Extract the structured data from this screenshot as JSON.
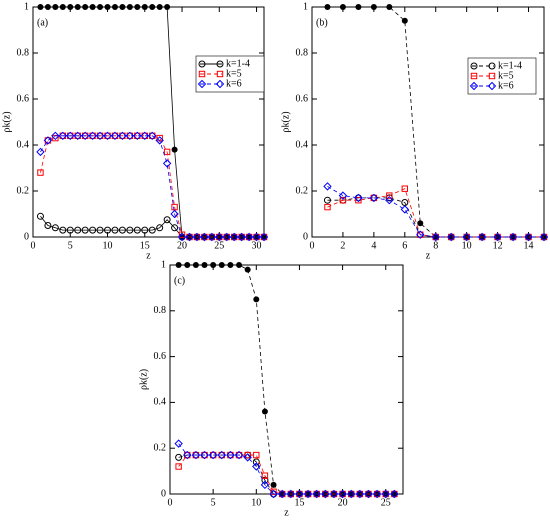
{
  "chart_data": [
    {
      "type": "line",
      "panel_label": "(a)",
      "xlabel": "z",
      "ylabel": "ρk(z)",
      "x": [
        1,
        2,
        3,
        4,
        5,
        6,
        7,
        8,
        9,
        10,
        11,
        12,
        13,
        14,
        15,
        16,
        17,
        18,
        19,
        20,
        21,
        22,
        23,
        24,
        25,
        26,
        27,
        28,
        29,
        30,
        31
      ],
      "xlim": [
        0,
        31
      ],
      "xticks": [
        0,
        5,
        10,
        15,
        20,
        25,
        30
      ],
      "ylim": [
        0,
        1
      ],
      "yticks": [
        0,
        0.2,
        0.4,
        0.6,
        0.8,
        1
      ],
      "series": [
        {
          "color": "#000000",
          "marker": "filled-circle",
          "dashed": false,
          "values": [
            1,
            1,
            1,
            1,
            1,
            1,
            1,
            1,
            1,
            1,
            1,
            1,
            1,
            1,
            1,
            1,
            1,
            1,
            0.38,
            0,
            0,
            0,
            0,
            0,
            0,
            0,
            0,
            0,
            0,
            0,
            0
          ]
        },
        {
          "name": "k=1-4",
          "color": "#000000",
          "marker": "circle",
          "dashed": false,
          "values": [
            0.09,
            0.05,
            0.04,
            0.03,
            0.03,
            0.03,
            0.03,
            0.03,
            0.03,
            0.03,
            0.03,
            0.03,
            0.03,
            0.03,
            0.03,
            0.03,
            0.04,
            0.075,
            0.04,
            0,
            0,
            0,
            0,
            0,
            0,
            0,
            0,
            0,
            0,
            0,
            0
          ]
        },
        {
          "name": "k=5",
          "color": "#ff0000",
          "marker": "square",
          "dashed": true,
          "values": [
            0.28,
            0.42,
            0.43,
            0.44,
            0.44,
            0.44,
            0.44,
            0.44,
            0.44,
            0.44,
            0.44,
            0.44,
            0.44,
            0.44,
            0.44,
            0.44,
            0.43,
            0.37,
            0.13,
            0.01,
            0,
            0,
            0,
            0,
            0,
            0,
            0,
            0,
            0,
            0,
            0
          ]
        },
        {
          "name": "k=6",
          "color": "#0000ff",
          "marker": "diamond",
          "dashed": true,
          "values": [
            0.37,
            0.42,
            0.44,
            0.44,
            0.44,
            0.44,
            0.44,
            0.44,
            0.44,
            0.44,
            0.44,
            0.44,
            0.44,
            0.44,
            0.44,
            0.44,
            0.42,
            0.32,
            0.1,
            0,
            0,
            0,
            0,
            0,
            0,
            0,
            0,
            0,
            0,
            0,
            0
          ]
        }
      ]
    },
    {
      "type": "line",
      "panel_label": "(b)",
      "xlabel": "z",
      "ylabel": "ρk(z)",
      "x": [
        1,
        2,
        3,
        4,
        5,
        6,
        7,
        8,
        9,
        10,
        11,
        12,
        13,
        14,
        15
      ],
      "xlim": [
        0,
        15
      ],
      "xticks": [
        0,
        2,
        4,
        6,
        8,
        10,
        12,
        14
      ],
      "ylim": [
        0,
        1
      ],
      "yticks": [
        0,
        0.2,
        0.4,
        0.6,
        0.8,
        1
      ],
      "series": [
        {
          "color": "#000000",
          "marker": "filled-circle",
          "dashed": true,
          "values": [
            1,
            1,
            1,
            1,
            1,
            0.94,
            0.06,
            0,
            0,
            0,
            0,
            0,
            0,
            0,
            0
          ]
        },
        {
          "name": "k=1-4",
          "color": "#000000",
          "marker": "circle",
          "dashed": true,
          "values": [
            0.16,
            0.16,
            0.17,
            0.17,
            0.17,
            0.15,
            0.01,
            0,
            0,
            0,
            0,
            0,
            0,
            0,
            0
          ]
        },
        {
          "name": "k=5",
          "color": "#ff0000",
          "marker": "square",
          "dashed": true,
          "values": [
            0.13,
            0.16,
            0.16,
            0.17,
            0.18,
            0.21,
            0.01,
            0,
            0,
            0,
            0,
            0,
            0,
            0,
            0
          ]
        },
        {
          "name": "k=6",
          "color": "#0000ff",
          "marker": "diamond",
          "dashed": true,
          "values": [
            0.22,
            0.18,
            0.17,
            0.17,
            0.16,
            0.12,
            0.01,
            0,
            0,
            0,
            0,
            0,
            0,
            0,
            0
          ]
        }
      ]
    },
    {
      "type": "line",
      "panel_label": "(c)",
      "xlabel": "z",
      "ylabel": "ρk(z)",
      "x": [
        1,
        2,
        3,
        4,
        5,
        6,
        7,
        8,
        9,
        10,
        11,
        12,
        13,
        14,
        15,
        16,
        17,
        18,
        19,
        20,
        21,
        22,
        23,
        24,
        25,
        26
      ],
      "xlim": [
        0,
        27
      ],
      "xticks": [
        0,
        5,
        10,
        15,
        20,
        25
      ],
      "ylim": [
        0,
        1
      ],
      "yticks": [
        0,
        0.2,
        0.4,
        0.6,
        0.8,
        1
      ],
      "series": [
        {
          "color": "#000000",
          "marker": "filled-circle",
          "dashed": true,
          "values": [
            1,
            1,
            1,
            1,
            1,
            1,
            1,
            1,
            0.98,
            0.85,
            0.36,
            0.04,
            0,
            0,
            0,
            0,
            0,
            0,
            0,
            0,
            0,
            0,
            0,
            0,
            0,
            0
          ]
        },
        {
          "color": "#000000",
          "marker": "circle",
          "dashed": true,
          "values": [
            0.16,
            0.17,
            0.17,
            0.17,
            0.17,
            0.17,
            0.17,
            0.17,
            0.17,
            0.14,
            0.06,
            0,
            0,
            0,
            0,
            0,
            0,
            0,
            0,
            0,
            0,
            0,
            0,
            0,
            0,
            0
          ]
        },
        {
          "color": "#ff0000",
          "marker": "square",
          "dashed": true,
          "values": [
            0.12,
            0.17,
            0.17,
            0.17,
            0.17,
            0.17,
            0.17,
            0.17,
            0.17,
            0.17,
            0.08,
            0.01,
            0,
            0,
            0,
            0,
            0,
            0,
            0,
            0,
            0,
            0,
            0,
            0,
            0,
            0
          ]
        },
        {
          "color": "#0000ff",
          "marker": "diamond",
          "dashed": true,
          "values": [
            0.22,
            0.17,
            0.17,
            0.17,
            0.17,
            0.17,
            0.17,
            0.17,
            0.16,
            0.12,
            0.04,
            0,
            0,
            0,
            0,
            0,
            0,
            0,
            0,
            0,
            0,
            0,
            0,
            0,
            0,
            0
          ]
        }
      ]
    }
  ]
}
